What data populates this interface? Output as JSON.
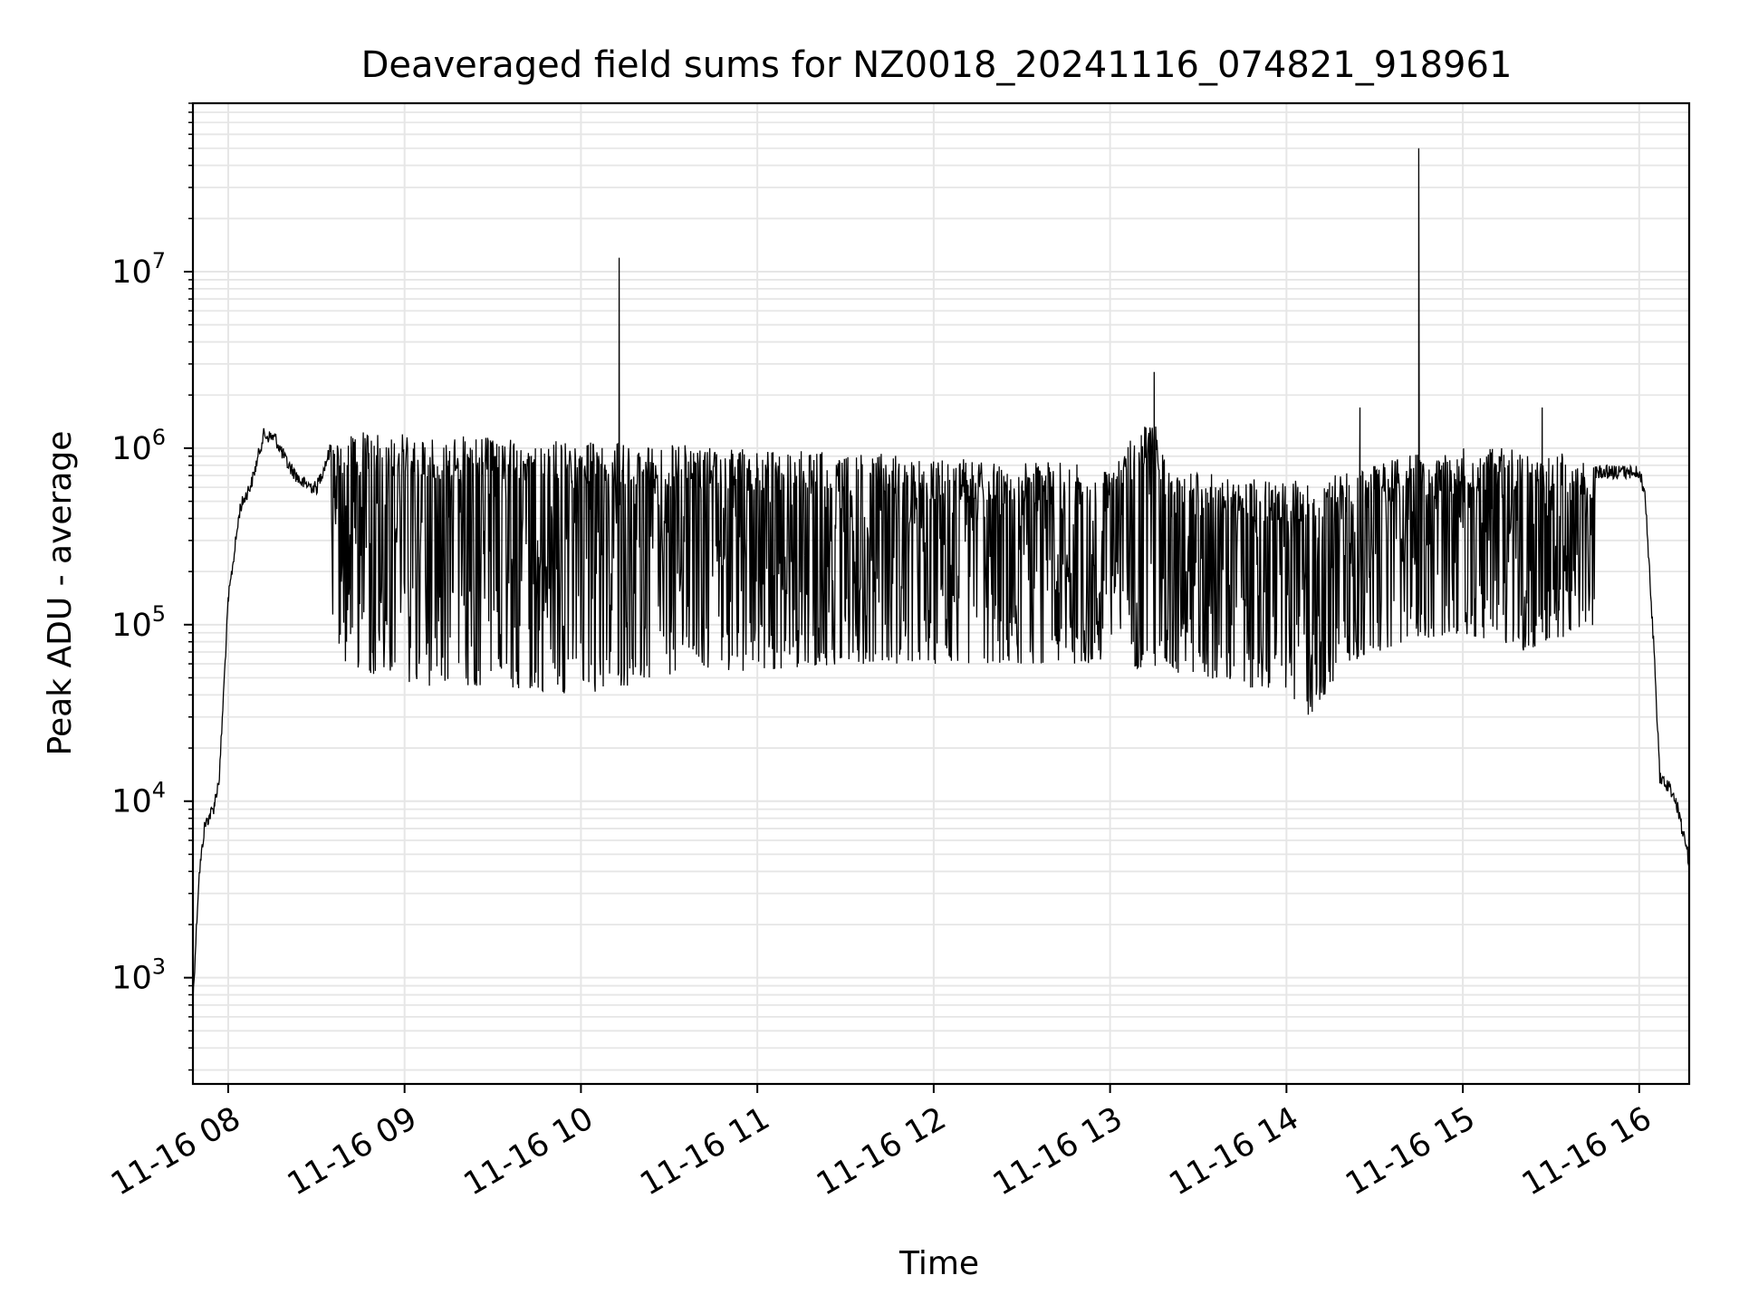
{
  "chart_data": {
    "type": "line",
    "title": "Deaveraged field sums for NZ0018_20241116_074821_918961",
    "xlabel": "Time",
    "ylabel": "Peak ADU - average",
    "x_scale": "time",
    "y_scale": "log",
    "xlim": [
      "2024-11-16 07:48",
      "2024-11-16 16:17"
    ],
    "ylim": [
      250,
      90000000
    ],
    "grid": true,
    "grid_minor_y": true,
    "x_ticks": [
      "11-16 08",
      "11-16 09",
      "11-16 10",
      "11-16 11",
      "11-16 12",
      "11-16 13",
      "11-16 14",
      "11-16 15",
      "11-16 16"
    ],
    "y_ticks": [
      {
        "base": "10",
        "exp": "3",
        "value": 1000
      },
      {
        "base": "10",
        "exp": "4",
        "value": 10000
      },
      {
        "base": "10",
        "exp": "5",
        "value": 100000
      },
      {
        "base": "10",
        "exp": "6",
        "value": 1000000
      },
      {
        "base": "10",
        "exp": "7",
        "value": 10000000
      }
    ],
    "series": [
      {
        "color": "#000000",
        "upper_envelope": [
          [
            "07:48",
            800
          ],
          [
            "07:50",
            4000
          ],
          [
            "07:52",
            8000
          ],
          [
            "07:55",
            10000
          ],
          [
            "07:57",
            15000
          ],
          [
            "08:00",
            150000
          ],
          [
            "08:04",
            500000
          ],
          [
            "08:08",
            700000
          ],
          [
            "08:12",
            1300000
          ],
          [
            "08:16",
            1250000
          ],
          [
            "08:20",
            900000
          ],
          [
            "08:25",
            700000
          ],
          [
            "08:30",
            650000
          ],
          [
            "08:35",
            1100000
          ],
          [
            "08:45",
            1250000
          ],
          [
            "09:00",
            1200000
          ],
          [
            "09:30",
            1150000
          ],
          [
            "10:00",
            1100000
          ],
          [
            "10:30",
            1050000
          ],
          [
            "11:00",
            1000000
          ],
          [
            "11:30",
            950000
          ],
          [
            "12:00",
            900000
          ],
          [
            "12:30",
            850000
          ],
          [
            "13:00",
            800000
          ],
          [
            "13:10",
            1300000
          ],
          [
            "13:15",
            1500000
          ],
          [
            "13:20",
            750000
          ],
          [
            "13:40",
            700000
          ],
          [
            "14:00",
            650000
          ],
          [
            "14:20",
            750000
          ],
          [
            "14:40",
            900000
          ],
          [
            "15:00",
            1000000
          ],
          [
            "15:30",
            1000000
          ],
          [
            "15:45",
            800000
          ],
          [
            "16:00",
            800000
          ],
          [
            "16:02",
            600000
          ],
          [
            "16:05",
            80000
          ],
          [
            "16:07",
            15000
          ],
          [
            "16:12",
            12000
          ],
          [
            "16:17",
            5000
          ]
        ],
        "lower_envelope": [
          [
            "08:35",
            100000
          ],
          [
            "08:40",
            60000
          ],
          [
            "09:00",
            45000
          ],
          [
            "09:30",
            45000
          ],
          [
            "10:00",
            40000
          ],
          [
            "10:30",
            50000
          ],
          [
            "11:00",
            55000
          ],
          [
            "11:30",
            60000
          ],
          [
            "12:00",
            60000
          ],
          [
            "12:30",
            60000
          ],
          [
            "13:00",
            60000
          ],
          [
            "13:30",
            50000
          ],
          [
            "13:45",
            45000
          ],
          [
            "14:00",
            40000
          ],
          [
            "14:08",
            30000
          ],
          [
            "14:20",
            60000
          ],
          [
            "14:40",
            80000
          ],
          [
            "15:00",
            90000
          ],
          [
            "15:20",
            70000
          ],
          [
            "15:30",
            80000
          ],
          [
            "15:45",
            100000
          ]
        ],
        "spikes": [
          [
            "10:13",
            12000000
          ],
          [
            "13:15",
            2700000
          ],
          [
            "14:25",
            1700000
          ],
          [
            "14:45",
            50000000
          ],
          [
            "15:27",
            1700000
          ]
        ]
      }
    ]
  }
}
